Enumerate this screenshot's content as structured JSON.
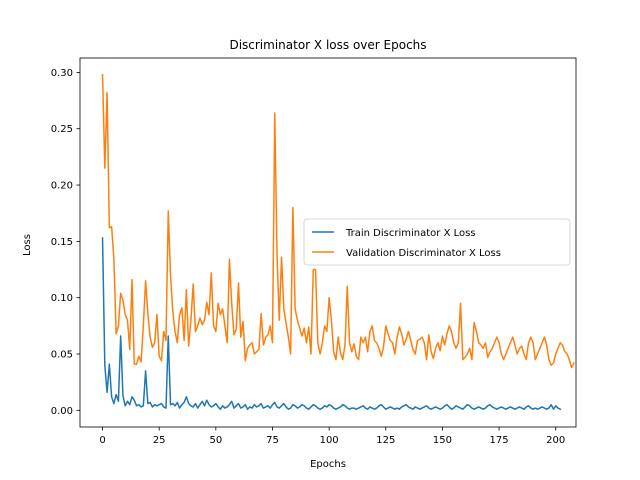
{
  "chart_data": {
    "type": "line",
    "title": "Discriminator X loss over Epochs",
    "xlabel": "Epochs",
    "ylabel": "Loss",
    "xlim": [
      -9.95,
      208.95
    ],
    "ylim": [
      -0.0148,
      0.3128
    ],
    "xticks": [
      0,
      25,
      50,
      75,
      100,
      125,
      150,
      175,
      200
    ],
    "yticks": [
      0.0,
      0.05,
      0.1,
      0.15,
      0.2,
      0.25,
      0.3
    ],
    "ytick_labels": [
      "0.00",
      "0.05",
      "0.10",
      "0.15",
      "0.20",
      "0.25",
      "0.30"
    ],
    "grid": false,
    "legend_position": "center-right",
    "series": [
      {
        "name": "Train Discriminator X Loss",
        "color": "#1f77b4",
        "values": [
          0.153,
          0.04,
          0.016,
          0.041,
          0.012,
          0.006,
          0.014,
          0.008,
          0.066,
          0.013,
          0.004,
          0.008,
          0.005,
          0.012,
          0.009,
          0.004,
          0.005,
          0.003,
          0.004,
          0.035,
          0.006,
          0.007,
          0.003,
          0.005,
          0.004,
          0.005,
          0.006,
          0.003,
          0.002,
          0.066,
          0.005,
          0.006,
          0.004,
          0.007,
          0.002,
          0.005,
          0.007,
          0.012,
          0.006,
          0.004,
          0.003,
          0.006,
          0.002,
          0.005,
          0.008,
          0.004,
          0.009,
          0.005,
          0.003,
          0.004,
          0.006,
          0.003,
          0.001,
          0.004,
          0.002,
          0.003,
          0.005,
          0.008,
          0.002,
          0.004,
          0.006,
          0.002,
          0.003,
          0.005,
          0.001,
          0.003,
          0.002,
          0.005,
          0.003,
          0.004,
          0.006,
          0.002,
          0.003,
          0.004,
          0.002,
          0.005,
          0.007,
          0.003,
          0.002,
          0.004,
          0.006,
          0.003,
          0.001,
          0.002,
          0.005,
          0.004,
          0.002,
          0.003,
          0.005,
          0.004,
          0.002,
          0.001,
          0.003,
          0.005,
          0.004,
          0.002,
          0.001,
          0.002,
          0.004,
          0.003,
          0.005,
          0.004,
          0.002,
          0.001,
          0.002,
          0.003,
          0.005,
          0.004,
          0.002,
          0.001,
          0.002,
          0.002,
          0.001,
          0.002,
          0.003,
          0.004,
          0.002,
          0.001,
          0.003,
          0.002,
          0.001,
          0.002,
          0.004,
          0.005,
          0.003,
          0.001,
          0.002,
          0.003,
          0.002,
          0.001,
          0.002,
          0.001,
          0.003,
          0.004,
          0.005,
          0.003,
          0.002,
          0.001,
          0.003,
          0.002,
          0.001,
          0.002,
          0.003,
          0.004,
          0.002,
          0.001,
          0.002,
          0.003,
          0.002,
          0.001,
          0.002,
          0.004,
          0.005,
          0.003,
          0.001,
          0.002,
          0.004,
          0.003,
          0.002,
          0.001,
          0.003,
          0.005,
          0.004,
          0.002,
          0.001,
          0.002,
          0.003,
          0.002,
          0.001,
          0.002,
          0.004,
          0.005,
          0.003,
          0.002,
          0.001,
          0.002,
          0.003,
          0.002,
          0.001,
          0.002,
          0.003,
          0.002,
          0.001,
          0.002,
          0.003,
          0.002,
          0.001,
          0.003,
          0.004,
          0.002,
          0.001,
          0.002,
          0.001,
          0.002,
          0.003,
          0.002,
          0.001,
          0.002,
          0.005,
          0.001,
          0.004,
          0.002,
          0.001
        ]
      },
      {
        "name": "Validation Discriminator X Loss",
        "color": "#ff7f0e",
        "values": [
          0.298,
          0.215,
          0.282,
          0.162,
          0.163,
          0.135,
          0.068,
          0.075,
          0.104,
          0.098,
          0.085,
          0.08,
          0.054,
          0.116,
          0.041,
          0.041,
          0.048,
          0.043,
          0.075,
          0.115,
          0.086,
          0.065,
          0.056,
          0.06,
          0.085,
          0.048,
          0.044,
          0.07,
          0.062,
          0.177,
          0.12,
          0.088,
          0.07,
          0.06,
          0.085,
          0.091,
          0.062,
          0.107,
          0.057,
          0.08,
          0.112,
          0.07,
          0.075,
          0.082,
          0.076,
          0.08,
          0.096,
          0.085,
          0.122,
          0.075,
          0.07,
          0.095,
          0.085,
          0.09,
          0.075,
          0.06,
          0.134,
          0.095,
          0.067,
          0.072,
          0.113,
          0.065,
          0.079,
          0.044,
          0.055,
          0.058,
          0.06,
          0.05,
          0.052,
          0.054,
          0.086,
          0.058,
          0.065,
          0.067,
          0.075,
          0.06,
          0.264,
          0.138,
          0.08,
          0.136,
          0.09,
          0.077,
          0.065,
          0.05,
          0.18,
          0.09,
          0.08,
          0.073,
          0.066,
          0.073,
          0.06,
          0.074,
          0.05,
          0.125,
          0.125,
          0.06,
          0.05,
          0.06,
          0.075,
          0.07,
          0.1,
          0.08,
          0.052,
          0.045,
          0.065,
          0.051,
          0.045,
          0.058,
          0.11,
          0.06,
          0.052,
          0.059,
          0.048,
          0.045,
          0.065,
          0.06,
          0.065,
          0.052,
          0.07,
          0.075,
          0.062,
          0.06,
          0.055,
          0.048,
          0.056,
          0.075,
          0.068,
          0.062,
          0.06,
          0.05,
          0.065,
          0.074,
          0.068,
          0.058,
          0.063,
          0.07,
          0.062,
          0.054,
          0.05,
          0.062,
          0.063,
          0.065,
          0.06,
          0.045,
          0.067,
          0.052,
          0.046,
          0.055,
          0.06,
          0.053,
          0.066,
          0.058,
          0.068,
          0.075,
          0.07,
          0.06,
          0.055,
          0.06,
          0.095,
          0.045,
          0.047,
          0.05,
          0.055,
          0.045,
          0.078,
          0.07,
          0.06,
          0.058,
          0.055,
          0.06,
          0.047,
          0.052,
          0.055,
          0.06,
          0.065,
          0.06,
          0.05,
          0.045,
          0.05,
          0.055,
          0.06,
          0.065,
          0.058,
          0.05,
          0.055,
          0.057,
          0.05,
          0.045,
          0.06,
          0.065,
          0.06,
          0.045,
          0.05,
          0.055,
          0.06,
          0.065,
          0.058,
          0.045,
          0.04,
          0.042,
          0.05,
          0.055,
          0.06,
          0.058,
          0.052,
          0.05,
          0.045,
          0.038,
          0.042
        ]
      }
    ]
  }
}
